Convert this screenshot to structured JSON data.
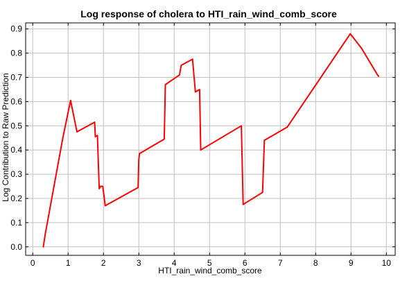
{
  "chart_data": {
    "type": "line",
    "title": "Log response of cholera to HTI_rain_wind_comb_score",
    "xlabel": "HTI_rain_wind_comb_score",
    "ylabel": "Log Contribution to Raw Prediction",
    "xlim": [
      -0.2,
      10.25
    ],
    "ylim": [
      -0.035,
      0.925
    ],
    "xticks": [
      0,
      1,
      2,
      3,
      4,
      5,
      6,
      7,
      8,
      9,
      10
    ],
    "xtick_labels": [
      "0",
      "1",
      "2",
      "3",
      "4",
      "5",
      "6",
      "7",
      "8",
      "9",
      "10"
    ],
    "yticks": [
      0.0,
      0.1,
      0.2,
      0.3,
      0.4,
      0.5,
      0.6,
      0.7,
      0.8,
      0.9
    ],
    "ytick_labels": [
      "0.0",
      "0.1",
      "0.2",
      "0.3",
      "0.4",
      "0.5",
      "0.6",
      "0.7",
      "0.8",
      "0.9"
    ],
    "grid": true,
    "legend": "none",
    "line_color": "#ff0000",
    "grid_color": "#c0c0c0",
    "series": [
      {
        "x": [
          0.3,
          0.35,
          0.85,
          1.07,
          1.25,
          1.5,
          1.75,
          1.77,
          1.83,
          1.88,
          1.92,
          1.98,
          2.05,
          2.98,
          3.0,
          3.02,
          3.72,
          3.75,
          4.1,
          4.15,
          4.2,
          4.52,
          4.6,
          4.72,
          4.75,
          5.9,
          5.95,
          6.5,
          6.55,
          7.2,
          8.98,
          9.3,
          9.75,
          9.78
        ],
        "y": [
          0.0,
          0.05,
          0.45,
          0.605,
          0.475,
          0.495,
          0.515,
          0.455,
          0.46,
          0.24,
          0.25,
          0.25,
          0.17,
          0.245,
          0.36,
          0.385,
          0.445,
          0.67,
          0.705,
          0.71,
          0.75,
          0.775,
          0.64,
          0.65,
          0.4,
          0.5,
          0.175,
          0.225,
          0.44,
          0.495,
          0.88,
          0.82,
          0.71,
          0.705
        ]
      }
    ]
  }
}
